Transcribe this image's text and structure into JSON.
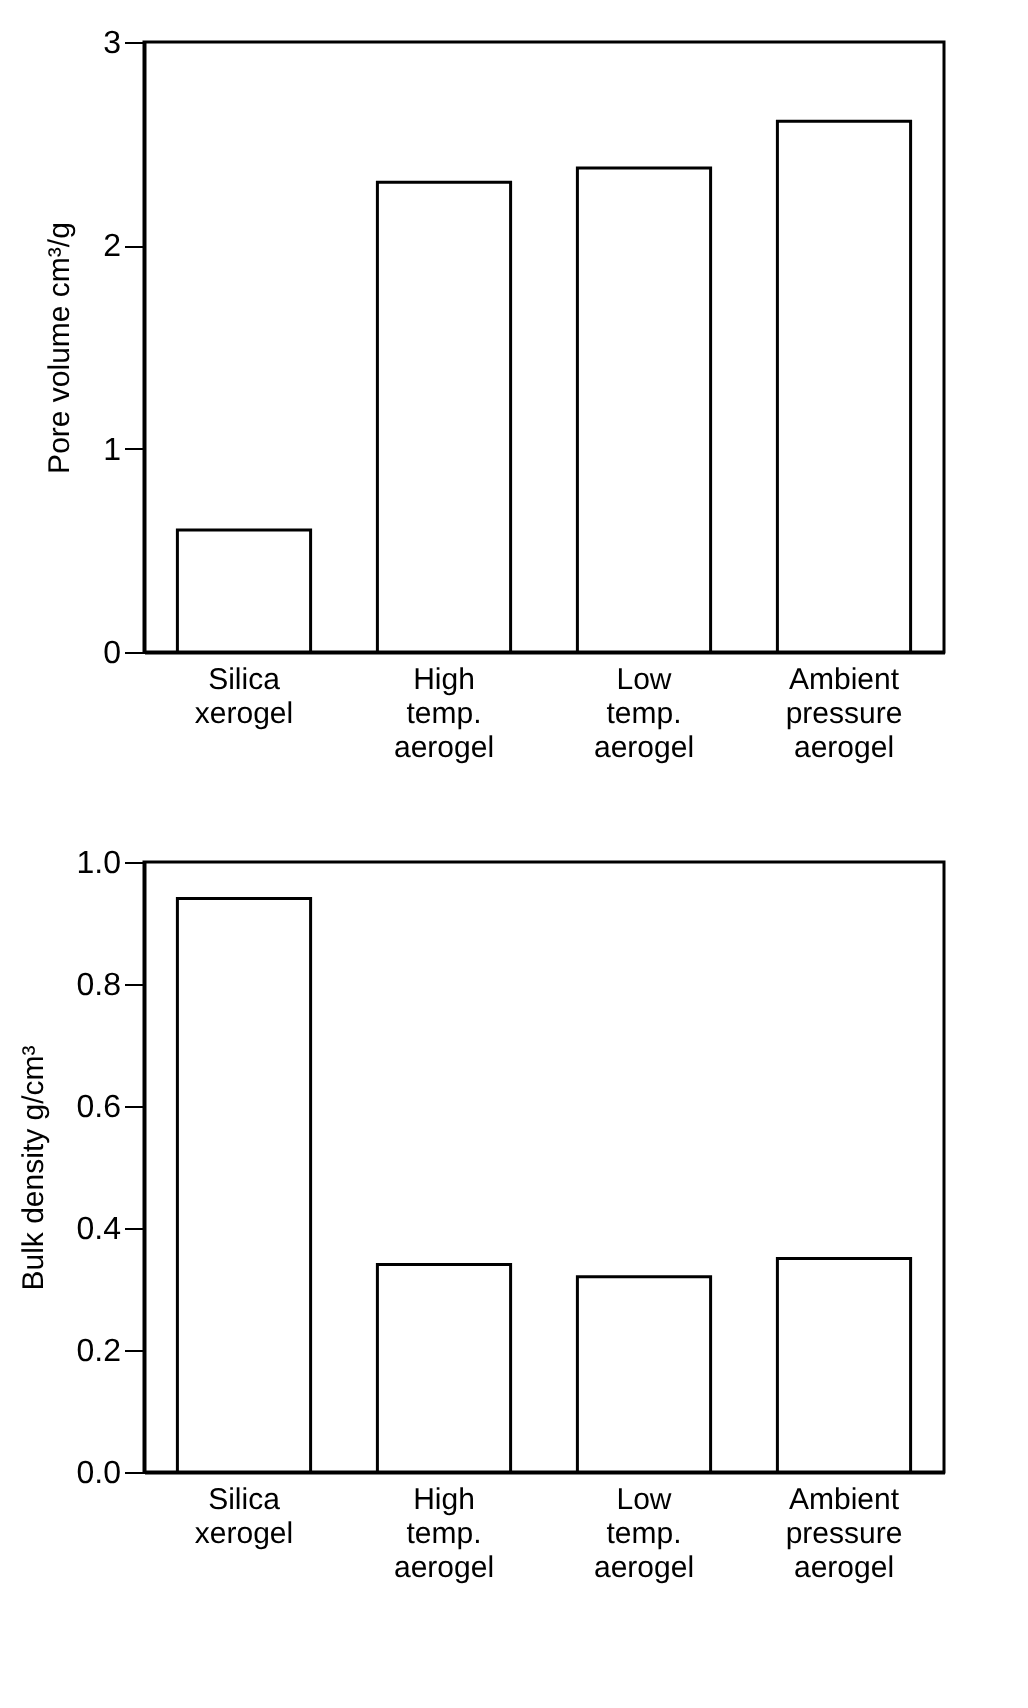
{
  "chart_data": [
    {
      "type": "bar",
      "ylabel": "Pore volume cm³/g",
      "categories": [
        "Silica\nxerogel",
        "High\ntemp.\naerogel",
        "Low\ntemp.\naerogel",
        "Ambient\npressure\naerogel"
      ],
      "values": [
        0.6,
        2.31,
        2.38,
        2.61
      ],
      "color": "#ffffff",
      "ylim": [
        0,
        3
      ],
      "yticks": [
        0,
        1,
        2,
        3
      ],
      "grid": false
    },
    {
      "type": "bar",
      "ylabel": "Bulk density g/cm³",
      "categories": [
        "Silica\nxerogel",
        "High\ntemp.\naerogel",
        "Low\ntemp.\naerogel",
        "Ambient\npressure\naerogel"
      ],
      "values": [
        0.94,
        0.34,
        0.32,
        0.35
      ],
      "color": "#ffffff",
      "ylim": [
        0,
        1.0
      ],
      "yticks": [
        {
          "value": 0,
          "label": "0.0"
        },
        {
          "value": 0.2,
          "label": "0.2"
        },
        {
          "value": 0.4,
          "label": "0.4"
        },
        {
          "value": 0.6,
          "label": "0.6"
        },
        {
          "value": 0.8,
          "label": "0.8"
        },
        {
          "value": 1.0,
          "label": "1.0"
        }
      ],
      "grid": false
    }
  ]
}
